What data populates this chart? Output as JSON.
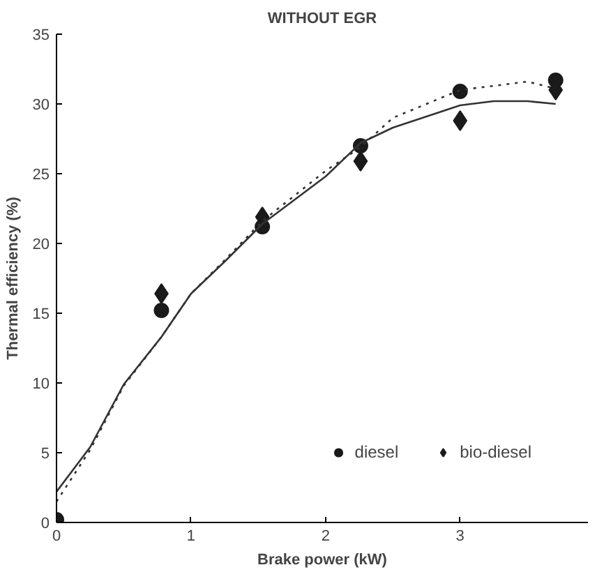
{
  "chart_data": {
    "type": "scatter",
    "title": "WITHOUT EGR",
    "xlabel": "Brake power (kW)",
    "ylabel": "Thermal efficiency (%)",
    "xlim": [
      0,
      3.95
    ],
    "xticks": [
      0,
      1,
      2,
      3
    ],
    "ylim": [
      0,
      35
    ],
    "yticks": [
      0,
      5,
      10,
      15,
      20,
      25,
      30,
      35
    ],
    "grid": false,
    "legend": "bottom right",
    "series": [
      {
        "name": "diesel",
        "marker": "circle",
        "color": "#1a1a1a",
        "x": [
          0,
          0.78,
          1.53,
          2.26,
          3.0,
          3.71
        ],
        "values": [
          0.2,
          15.2,
          21.2,
          27.0,
          30.9,
          31.7
        ]
      },
      {
        "name": "bio-diesel",
        "marker": "diamond",
        "color": "#1a1a1a",
        "x": [
          0.78,
          1.53,
          2.26,
          3.0,
          3.71
        ],
        "values": [
          16.4,
          21.9,
          25.9,
          28.8,
          31.0
        ]
      },
      {
        "type": "line",
        "line_style": "solid",
        "marker": "none",
        "color": "#333333",
        "x": [
          0,
          0.25,
          0.5,
          0.78,
          1,
          1.25,
          1.53,
          2,
          2.26,
          2.5,
          3,
          3.25,
          3.5,
          3.71
        ],
        "values": [
          2.2,
          5.4,
          9.9,
          13.3,
          16.4,
          18.7,
          21.4,
          24.8,
          27.2,
          28.3,
          29.9,
          30.2,
          30.2,
          30.0
        ]
      },
      {
        "type": "line",
        "line_style": "dotted",
        "marker": "none",
        "color": "#333333",
        "x": [
          0,
          0.25,
          0.5,
          0.78,
          1,
          1.25,
          1.53,
          2,
          2.26,
          2.5,
          3,
          3.25,
          3.5,
          3.71
        ],
        "values": [
          1.5,
          5.2,
          9.8,
          13.3,
          16.4,
          18.8,
          21.6,
          25.2,
          26.9,
          29.0,
          31.0,
          31.3,
          31.6,
          31.1
        ]
      }
    ]
  }
}
